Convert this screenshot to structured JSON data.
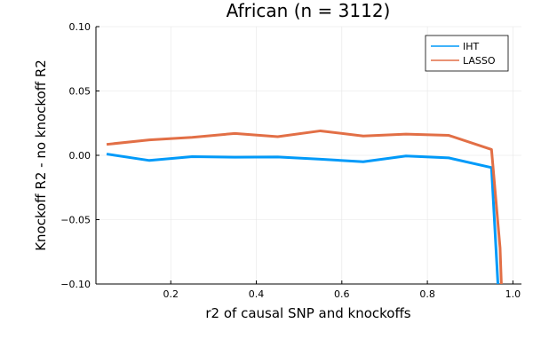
{
  "chart_data": {
    "type": "line",
    "title": "African (n = 3112)",
    "xlabel": "r2 of causal SNP and knockoffs",
    "ylabel": "Knockoff R2 - no knockoff R2",
    "xlim": [
      0.025,
      1.02
    ],
    "ylim": [
      -0.1,
      0.1
    ],
    "xticks": [
      0.2,
      0.4,
      0.6,
      0.8,
      1.0
    ],
    "xtick_labels": [
      "0.2",
      "0.4",
      "0.6",
      "0.8",
      "1.0"
    ],
    "yticks": [
      -0.1,
      -0.05,
      0.0,
      0.05,
      0.1
    ],
    "ytick_labels": [
      "−0.10",
      "−0.05",
      "0.00",
      "0.05",
      "0.10"
    ],
    "grid": true,
    "legend_position": "top-right",
    "series": [
      {
        "name": "IHT",
        "color": "#009af9",
        "x": [
          0.05,
          0.15,
          0.25,
          0.35,
          0.45,
          0.55,
          0.65,
          0.75,
          0.85,
          0.95,
          0.965
        ],
        "y": [
          0.001,
          -0.004,
          -0.001,
          -0.0015,
          -0.0013,
          -0.003,
          -0.005,
          -0.0005,
          -0.002,
          -0.0095,
          -0.1
        ]
      },
      {
        "name": "LASSO",
        "color": "#e26f46",
        "x": [
          0.05,
          0.15,
          0.25,
          0.35,
          0.45,
          0.55,
          0.65,
          0.75,
          0.85,
          0.95,
          0.97,
          0.973
        ],
        "y": [
          0.0085,
          0.012,
          0.014,
          0.017,
          0.0145,
          0.019,
          0.015,
          0.0165,
          0.0155,
          0.0045,
          -0.072,
          -0.1
        ]
      }
    ]
  }
}
